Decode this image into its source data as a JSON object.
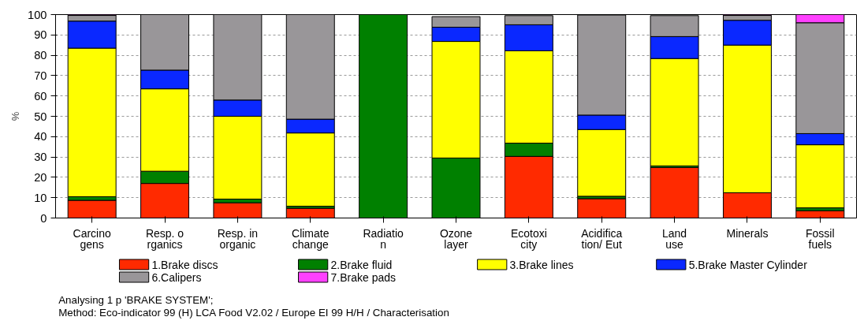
{
  "chart_data": {
    "type": "bar",
    "stacked": true,
    "ylabel": "%",
    "categories": [
      "Carcino\ngens",
      "Resp. o\nrganics",
      "Resp. in\norganic",
      "Climate\nchange",
      "Radiatio\nn",
      "Ozone\nlayer",
      "Ecotoxi\ncity",
      "Acidifica\ntion/ Eut",
      "Land\nuse",
      "Minerals",
      "Fossil\nfuels"
    ],
    "series": [
      {
        "name": "1.Brake discs",
        "color": "#ff2a00",
        "values": [
          8.7,
          17,
          7.5,
          4.8,
          0,
          null,
          30.3,
          9.5,
          24.8,
          12.4,
          3.6
        ]
      },
      {
        "name": "2.Brake fluid",
        "color": "#008000",
        "values": [
          1.8,
          6,
          1.8,
          1,
          100,
          29.5,
          6.5,
          1.2,
          0.8,
          0,
          1.4
        ]
      },
      {
        "name": "3.Brake lines",
        "color": "#ffff00",
        "values": [
          73,
          40.5,
          40.7,
          36,
          0,
          57.3,
          45.4,
          32.8,
          52.8,
          72.6,
          31
        ]
      },
      {
        "name": "5.Brake Master Cylinder",
        "color": "#0a28ff",
        "values": [
          13.3,
          9.2,
          8,
          6.8,
          0,
          7,
          12.8,
          7.1,
          10.8,
          12.2,
          5.5
        ]
      },
      {
        "name": "6.Calipers",
        "color": "#999699",
        "values": [
          2.8,
          27.3,
          42,
          51.4,
          0,
          5.2,
          4.5,
          49.2,
          10.3,
          2.4,
          54.5
        ]
      },
      {
        "name": "7.Brake pads",
        "color": "#ff40ff",
        "values": [
          0.4,
          0,
          0,
          0,
          0,
          null,
          null,
          null,
          null,
          0.4,
          4
        ]
      }
    ],
    "ylim": [
      0,
      100
    ],
    "yticks": [
      0,
      10,
      20,
      30,
      40,
      50,
      60,
      70,
      80,
      90,
      100
    ],
    "grid": "y",
    "legend": "bottom",
    "annotations": [
      "Analysing 1 p 'BRAKE SYSTEM';",
      "Method: Eco-indicator 99 (H) LCA Food V2.02 / Europe EI 99 H/H / Characterisation"
    ]
  }
}
